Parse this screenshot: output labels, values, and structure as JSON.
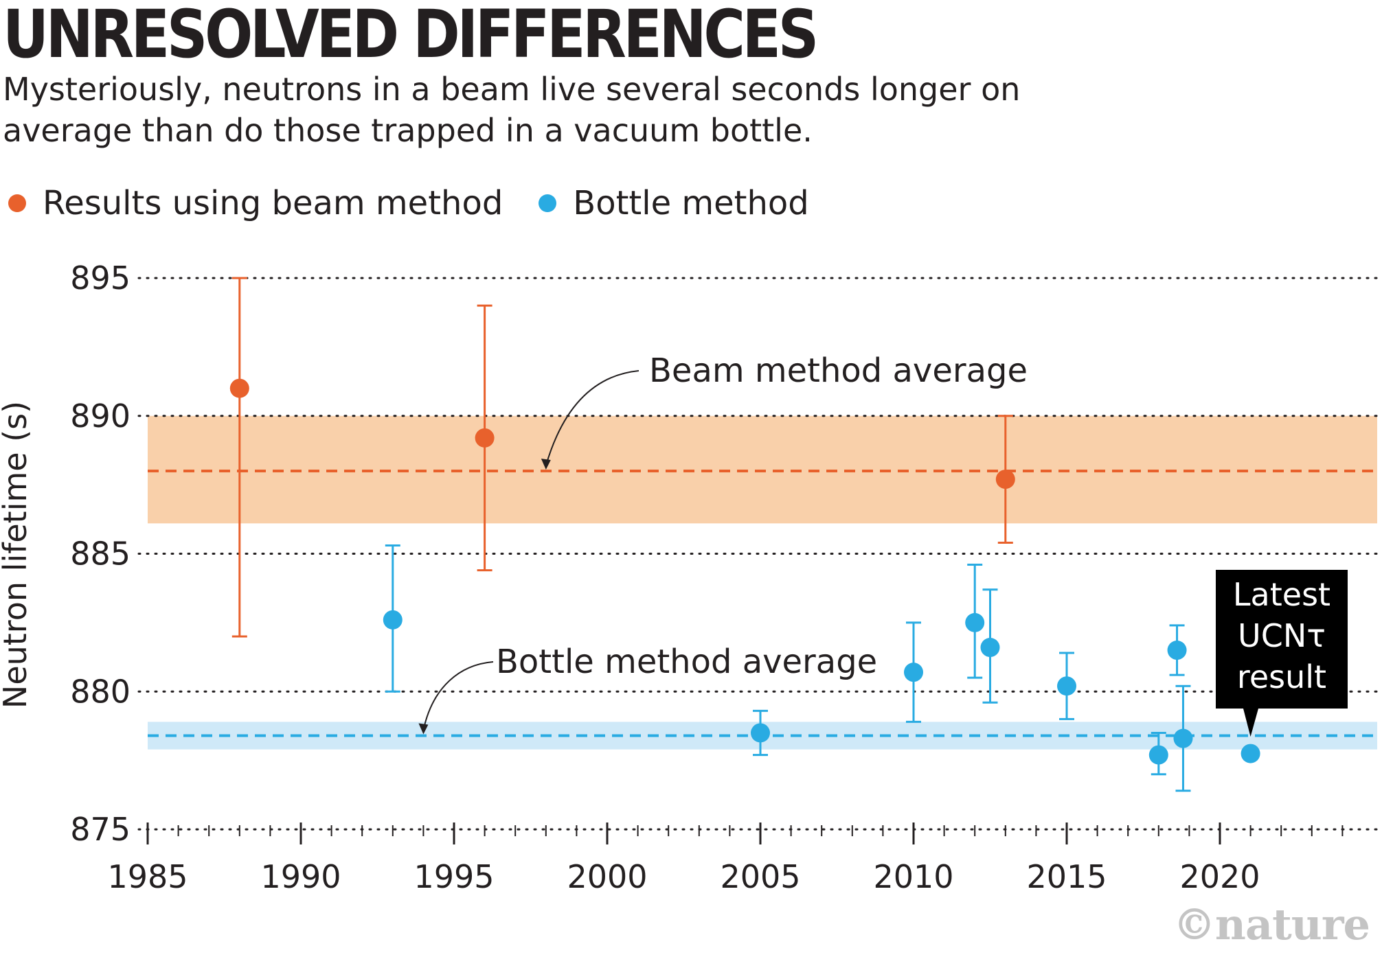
{
  "header": {
    "title": "UNRESOLVED DIFFERENCES",
    "subtitle": "Mysteriously, neutrons in a beam live several seconds longer on average than do those trapped in a vacuum bottle."
  },
  "legend": {
    "beam_label": "Results using beam method",
    "bottle_label": "Bottle method"
  },
  "credit": "©nature",
  "colors": {
    "beam": "#e8612c",
    "bottle": "#29abe2",
    "beam_band": "#f9d0aa",
    "bottle_band": "#cfe9f8"
  },
  "chart_data": {
    "type": "scatter",
    "ylabel": "Neutron lifetime (s)",
    "xlabel": "",
    "xlim": [
      1985,
      2025
    ],
    "ylim": [
      875,
      895
    ],
    "x_ticks": [
      1985,
      1990,
      1995,
      2000,
      2005,
      2010,
      2015,
      2020
    ],
    "y_ticks": [
      875,
      880,
      885,
      890,
      895
    ],
    "series": [
      {
        "name": "Results using beam method",
        "color": "#e8612c",
        "points": [
          {
            "x": 1988,
            "y": 891.0,
            "low": 882.0,
            "high": 895.0
          },
          {
            "x": 1996,
            "y": 889.2,
            "low": 884.4,
            "high": 894.0
          },
          {
            "x": 2013,
            "y": 887.7,
            "low": 885.4,
            "high": 890.0
          }
        ]
      },
      {
        "name": "Bottle method",
        "color": "#29abe2",
        "points": [
          {
            "x": 1993,
            "y": 882.6,
            "low": 880.0,
            "high": 885.3
          },
          {
            "x": 2005,
            "y": 878.5,
            "low": 877.7,
            "high": 879.3
          },
          {
            "x": 2010,
            "y": 880.7,
            "low": 878.9,
            "high": 882.5
          },
          {
            "x": 2012,
            "y": 882.5,
            "low": 880.5,
            "high": 884.6
          },
          {
            "x": 2012.5,
            "y": 881.6,
            "low": 879.6,
            "high": 883.7
          },
          {
            "x": 2015,
            "y": 880.2,
            "low": 879.0,
            "high": 881.4
          },
          {
            "x": 2018,
            "y": 877.7,
            "low": 877.0,
            "high": 878.5
          },
          {
            "x": 2018.6,
            "y": 881.5,
            "low": 880.6,
            "high": 882.4
          },
          {
            "x": 2018.8,
            "y": 878.3,
            "low": 876.4,
            "high": 880.2
          },
          {
            "x": 2021,
            "y": 877.75,
            "low": null,
            "high": null
          }
        ]
      }
    ],
    "bands": [
      {
        "name": "Beam method average",
        "mean": 888.0,
        "low": 886.1,
        "high": 890.0
      },
      {
        "name": "Bottle method average",
        "mean": 878.4,
        "low": 877.9,
        "high": 878.9
      }
    ],
    "annotations": {
      "beam_average": "Beam method average",
      "bottle_average": "Bottle method average",
      "latest": "Latest UCNτ result",
      "latest_lines": [
        "Latest",
        "UCNτ",
        "result"
      ]
    }
  }
}
